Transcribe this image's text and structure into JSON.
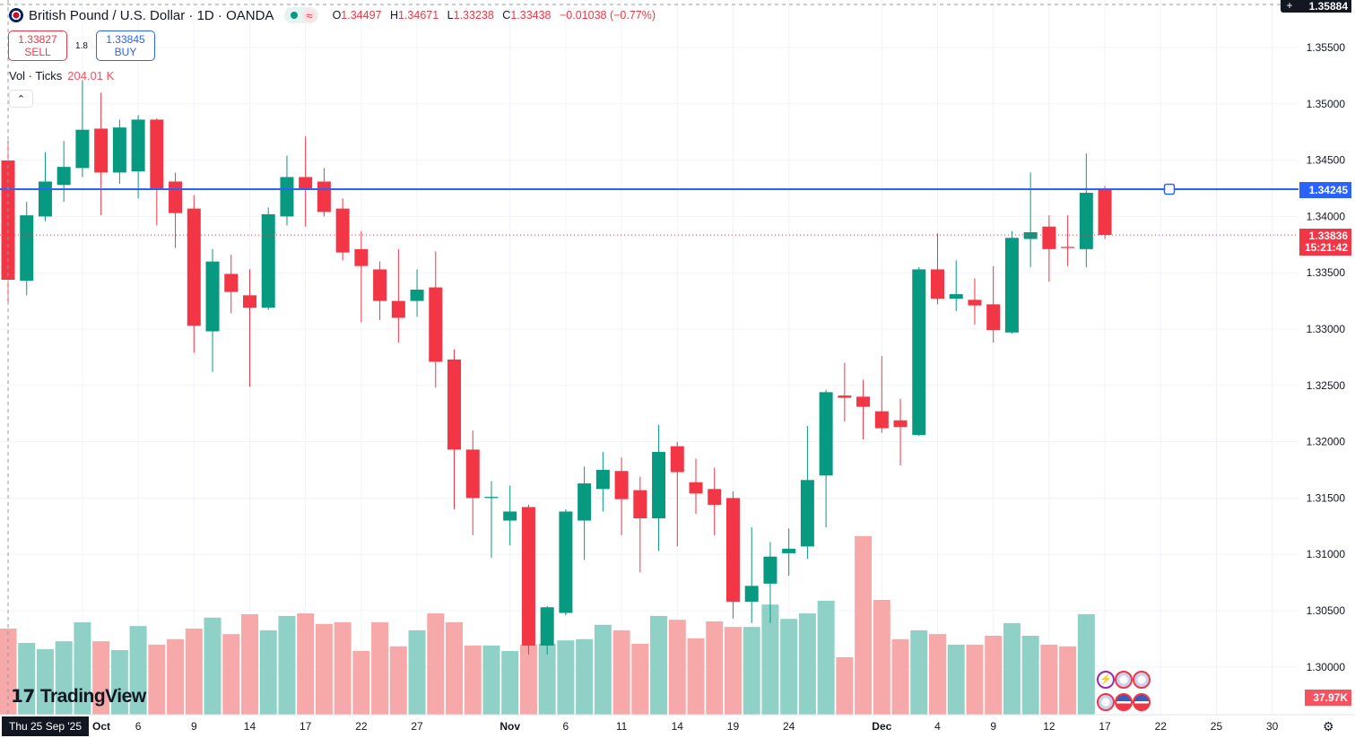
{
  "header": {
    "symbol": "British Pound / U.S. Dollar · 1D · OANDA",
    "ohlc": {
      "o_label": "O",
      "o": "1.34497",
      "h_label": "H",
      "h": "1.34671",
      "l_label": "L",
      "l": "1.33238",
      "c_label": "C",
      "c": "1.33438",
      "change": "−0.01038 (−0.77%)"
    }
  },
  "trade": {
    "sell_price": "1.33827",
    "sell_label": "SELL",
    "spread": "1.8",
    "buy_price": "1.33845",
    "buy_label": "BUY"
  },
  "volume_legend": {
    "label": "Vol · Ticks",
    "value": "204.01 K"
  },
  "logo": "TradingView",
  "crosshair": {
    "date": "Thu 25 Sep '25",
    "price": "1.35884"
  },
  "horizontal_line": {
    "price": "1.34245",
    "color": "#2962ff"
  },
  "last_price": {
    "price": "1.33836",
    "countdown": "15:21:42",
    "color": "#f23645"
  },
  "last_volume": "37.97K",
  "colors": {
    "up": "#089981",
    "down": "#f23645",
    "vol_up": "#8fd1c6",
    "vol_down": "#f7a9a9"
  },
  "chart_data": {
    "type": "candlestick",
    "ylim": [
      1.2985,
      1.3593
    ],
    "price_ticks": [
      "1.35500",
      "1.35000",
      "1.34500",
      "1.34000",
      "1.33500",
      "1.33000",
      "1.32500",
      "1.32000",
      "1.31500",
      "1.31000",
      "1.30500",
      "1.30000"
    ],
    "time_labels": [
      {
        "label": "Oct",
        "bar": 4
      },
      {
        "label": "6",
        "bar": 7
      },
      {
        "label": "9",
        "bar": 10
      },
      {
        "label": "14",
        "bar": 13
      },
      {
        "label": "17",
        "bar": 16
      },
      {
        "label": "22",
        "bar": 19
      },
      {
        "label": "27",
        "bar": 22
      },
      {
        "label": "Nov",
        "bar": 27
      },
      {
        "label": "6",
        "bar": 30
      },
      {
        "label": "11",
        "bar": 33
      },
      {
        "label": "14",
        "bar": 36
      },
      {
        "label": "19",
        "bar": 39
      },
      {
        "label": "24",
        "bar": 42
      },
      {
        "label": "Dec",
        "bar": 47
      },
      {
        "label": "4",
        "bar": 50
      },
      {
        "label": "9",
        "bar": 53
      },
      {
        "label": "12",
        "bar": 56
      },
      {
        "label": "17",
        "bar": 59
      },
      {
        "label": "22",
        "bar": 62
      },
      {
        "label": "25",
        "bar": 65
      },
      {
        "label": "30",
        "bar": 68
      }
    ],
    "candles": [
      [
        1.34497,
        1.34671,
        1.33238,
        1.33438,
        204.01
      ],
      [
        1.3343,
        1.3413,
        1.333,
        1.3401,
        170
      ],
      [
        1.34,
        1.3457,
        1.3396,
        1.3431,
        155
      ],
      [
        1.3428,
        1.3467,
        1.3413,
        1.3444,
        174
      ],
      [
        1.3443,
        1.3521,
        1.3435,
        1.3477,
        219
      ],
      [
        1.3478,
        1.351,
        1.3401,
        1.3439,
        174
      ],
      [
        1.3439,
        1.3486,
        1.3429,
        1.3479,
        153
      ],
      [
        1.344,
        1.349,
        1.3416,
        1.3486,
        210
      ],
      [
        1.3486,
        1.3487,
        1.3392,
        1.3425,
        166
      ],
      [
        1.3431,
        1.3439,
        1.3372,
        1.3403,
        179
      ],
      [
        1.3407,
        1.3419,
        1.3279,
        1.3303,
        204
      ],
      [
        1.3298,
        1.3371,
        1.3262,
        1.336,
        230
      ],
      [
        1.3349,
        1.3366,
        1.3314,
        1.3333,
        191
      ],
      [
        1.333,
        1.3353,
        1.3249,
        1.3319,
        238
      ],
      [
        1.3319,
        1.3408,
        1.3317,
        1.3402,
        200
      ],
      [
        1.34,
        1.3454,
        1.3392,
        1.3435,
        234
      ],
      [
        1.3435,
        1.3471,
        1.3391,
        1.3425,
        240
      ],
      [
        1.3431,
        1.3443,
        1.34,
        1.3404,
        215
      ],
      [
        1.3407,
        1.3416,
        1.3361,
        1.3368,
        219
      ],
      [
        1.3371,
        1.3387,
        1.3306,
        1.3356,
        151
      ],
      [
        1.3353,
        1.336,
        1.3308,
        1.3325,
        219
      ],
      [
        1.3325,
        1.3371,
        1.3288,
        1.331,
        162
      ],
      [
        1.3325,
        1.3353,
        1.3311,
        1.3335,
        200
      ],
      [
        1.3337,
        1.3369,
        1.3248,
        1.3271,
        240
      ],
      [
        1.3273,
        1.3282,
        1.314,
        1.3193,
        219
      ],
      [
        1.3193,
        1.321,
        1.3117,
        1.315,
        164
      ],
      [
        1.315,
        1.3165,
        1.3097,
        1.3151,
        164
      ],
      [
        1.313,
        1.3161,
        1.3108,
        1.3138,
        151
      ],
      [
        1.3142,
        1.3144,
        1.3011,
        1.3019,
        166
      ],
      [
        1.3019,
        1.3054,
        1.3011,
        1.3053,
        168
      ],
      [
        1.3048,
        1.314,
        1.3046,
        1.3138,
        176
      ],
      [
        1.313,
        1.3178,
        1.3095,
        1.3163,
        179
      ],
      [
        1.3158,
        1.3191,
        1.3138,
        1.3175,
        213
      ],
      [
        1.3174,
        1.3186,
        1.3117,
        1.3149,
        200
      ],
      [
        1.3157,
        1.3169,
        1.3084,
        1.3132,
        168
      ],
      [
        1.3132,
        1.3215,
        1.3103,
        1.3191,
        234
      ],
      [
        1.3196,
        1.32,
        1.3107,
        1.3173,
        225
      ],
      [
        1.3164,
        1.3185,
        1.3136,
        1.3154,
        181
      ],
      [
        1.3158,
        1.3177,
        1.3117,
        1.3144,
        221
      ],
      [
        1.315,
        1.3156,
        1.3043,
        1.3058,
        208
      ],
      [
        1.3058,
        1.3124,
        1.3039,
        1.3072,
        208
      ],
      [
        1.3074,
        1.3111,
        1.3039,
        1.3098,
        261
      ],
      [
        1.3101,
        1.3123,
        1.3081,
        1.3105,
        227
      ],
      [
        1.3107,
        1.3214,
        1.3096,
        1.3166,
        240
      ],
      [
        1.317,
        1.3246,
        1.3124,
        1.3244,
        270
      ],
      [
        1.3241,
        1.327,
        1.3218,
        1.3239,
        136
      ],
      [
        1.324,
        1.3255,
        1.3202,
        1.3231,
        423
      ],
      [
        1.3227,
        1.3276,
        1.3208,
        1.3212,
        272
      ],
      [
        1.3219,
        1.3238,
        1.3179,
        1.3213,
        179
      ],
      [
        1.3206,
        1.3355,
        1.3205,
        1.3353,
        200
      ],
      [
        1.3353,
        1.3385,
        1.3322,
        1.3327,
        191
      ],
      [
        1.3327,
        1.3361,
        1.3316,
        1.3331,
        166
      ],
      [
        1.3326,
        1.3345,
        1.3304,
        1.3321,
        166
      ],
      [
        1.3322,
        1.3356,
        1.3288,
        1.3299,
        187
      ],
      [
        1.3297,
        1.3387,
        1.3296,
        1.3381,
        217
      ],
      [
        1.338,
        1.3439,
        1.3355,
        1.3386,
        187
      ],
      [
        1.3391,
        1.3401,
        1.3342,
        1.3371,
        166
      ],
      [
        1.3373,
        1.3401,
        1.3356,
        1.3372,
        162
      ],
      [
        1.3371,
        1.3456,
        1.3355,
        1.3421,
        238
      ],
      [
        1.3424,
        1.3427,
        1.338,
        1.33836,
        37.97
      ]
    ],
    "candle_fields": [
      "open",
      "high",
      "low",
      "close",
      "volume_k"
    ]
  },
  "events": [
    {
      "icon": "lightning-icon"
    },
    {
      "icon": "uk-flag-icon"
    },
    {
      "icon": "uk-flag-icon"
    },
    {
      "icon": "uk-flag-icon"
    },
    {
      "icon": "us-flag-icon"
    },
    {
      "icon": "us-flag-icon"
    }
  ]
}
